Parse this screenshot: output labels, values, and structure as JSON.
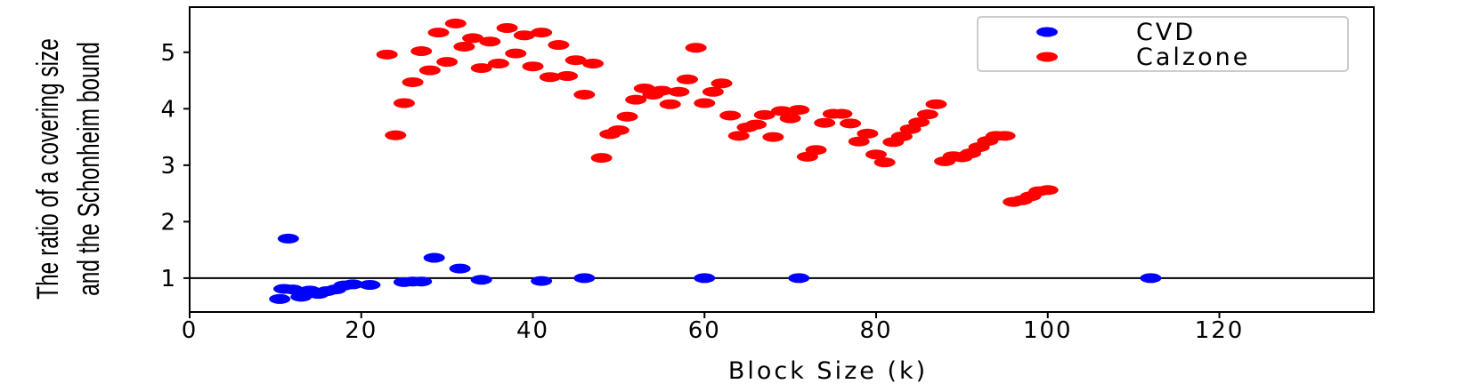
{
  "chart_data": {
    "type": "scatter",
    "title": "",
    "xlabel": "Block Size (k)",
    "ylabel_lines": [
      "The ratio of a covering size",
      "and the Schonheim bound"
    ],
    "xlim": [
      0,
      138
    ],
    "ylim": [
      0.4,
      5.8
    ],
    "xticks": [
      0,
      20,
      40,
      60,
      80,
      100,
      120
    ],
    "yticks": [
      1,
      2,
      3,
      4,
      5
    ],
    "reference_line": 1,
    "legend_position": "top-right",
    "series": [
      {
        "name": "CVD",
        "color": "#0000ff",
        "points": [
          [
            10.5,
            0.63
          ],
          [
            11,
            0.81
          ],
          [
            11.5,
            1.7
          ],
          [
            12,
            0.8
          ],
          [
            13,
            0.67
          ],
          [
            14,
            0.78
          ],
          [
            15,
            0.72
          ],
          [
            16,
            0.77
          ],
          [
            17,
            0.8
          ],
          [
            18,
            0.87
          ],
          [
            19,
            0.89
          ],
          [
            21,
            0.88
          ],
          [
            25,
            0.93
          ],
          [
            26,
            0.94
          ],
          [
            27,
            0.94
          ],
          [
            28.5,
            1.36
          ],
          [
            31.5,
            1.17
          ],
          [
            34,
            0.97
          ],
          [
            41,
            0.95
          ],
          [
            46,
            1.0
          ],
          [
            60,
            1.0
          ],
          [
            71,
            1.0
          ],
          [
            112,
            1.0
          ]
        ]
      },
      {
        "name": "Calzone",
        "color": "#ff0000",
        "points": [
          [
            23,
            4.96
          ],
          [
            24,
            3.53
          ],
          [
            25,
            4.1
          ],
          [
            26,
            4.47
          ],
          [
            27,
            5.02
          ],
          [
            28,
            4.68
          ],
          [
            29,
            5.35
          ],
          [
            30,
            4.83
          ],
          [
            31,
            5.51
          ],
          [
            32,
            5.1
          ],
          [
            33,
            5.25
          ],
          [
            34,
            4.72
          ],
          [
            35,
            5.19
          ],
          [
            36,
            4.8
          ],
          [
            37,
            5.43
          ],
          [
            38,
            4.98
          ],
          [
            39,
            5.3
          ],
          [
            40,
            4.75
          ],
          [
            41,
            5.35
          ],
          [
            42,
            4.56
          ],
          [
            43,
            5.13
          ],
          [
            44,
            4.58
          ],
          [
            45,
            4.86
          ],
          [
            46,
            4.25
          ],
          [
            47,
            4.8
          ],
          [
            48,
            3.13
          ],
          [
            49,
            3.55
          ],
          [
            50,
            3.62
          ],
          [
            51,
            3.86
          ],
          [
            52,
            4.16
          ],
          [
            53,
            4.36
          ],
          [
            54,
            4.25
          ],
          [
            55,
            4.32
          ],
          [
            56,
            4.08
          ],
          [
            57,
            4.3
          ],
          [
            58,
            4.52
          ],
          [
            59,
            5.08
          ],
          [
            60,
            4.1
          ],
          [
            61,
            4.3
          ],
          [
            62,
            4.45
          ],
          [
            63,
            3.88
          ],
          [
            64,
            3.52
          ],
          [
            65,
            3.67
          ],
          [
            66,
            3.72
          ],
          [
            67,
            3.89
          ],
          [
            68,
            3.5
          ],
          [
            69,
            3.96
          ],
          [
            70,
            3.83
          ],
          [
            71,
            3.98
          ],
          [
            72,
            3.15
          ],
          [
            73,
            3.27
          ],
          [
            74,
            3.75
          ],
          [
            75,
            3.91
          ],
          [
            76,
            3.91
          ],
          [
            77,
            3.74
          ],
          [
            78,
            3.42
          ],
          [
            79,
            3.56
          ],
          [
            80,
            3.19
          ],
          [
            81,
            3.05
          ],
          [
            82,
            3.41
          ],
          [
            83,
            3.51
          ],
          [
            84,
            3.64
          ],
          [
            85,
            3.76
          ],
          [
            86,
            3.9
          ],
          [
            87,
            4.08
          ],
          [
            88,
            3.07
          ],
          [
            89,
            3.16
          ],
          [
            90,
            3.14
          ],
          [
            91,
            3.21
          ],
          [
            92,
            3.32
          ],
          [
            93,
            3.43
          ],
          [
            94,
            3.52
          ],
          [
            95,
            3.52
          ],
          [
            96,
            2.35
          ],
          [
            97,
            2.38
          ],
          [
            98,
            2.45
          ],
          [
            99,
            2.54
          ],
          [
            100,
            2.56
          ]
        ]
      }
    ]
  }
}
